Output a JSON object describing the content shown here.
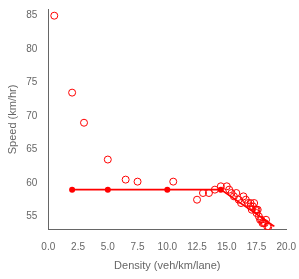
{
  "chart_data": {
    "type": "scatter",
    "xlabel": "Density (veh/km/lane)",
    "ylabel": "Speed (km/hr)",
    "xlim": [
      0,
      20
    ],
    "ylim": [
      53,
      86
    ],
    "xticks": [
      {
        "value": 0,
        "label": "0.0"
      },
      2.5,
      {
        "value": 5,
        "label": "5.0"
      },
      7.5,
      {
        "value": 10,
        "label": "10.0"
      },
      12.5,
      {
        "value": 15,
        "label": "15.0"
      },
      17.5,
      {
        "value": 20,
        "label": "20.0"
      }
    ],
    "yticks": [
      55,
      60,
      65,
      70,
      75,
      80,
      85
    ],
    "grid": false,
    "series": [
      {
        "type": "line",
        "color": "#ff0000",
        "line_style": "solid",
        "x": [
          2.0,
          5.0,
          10.0,
          14.5,
          19.0
        ],
        "values": [
          59.0,
          59.0,
          59.0,
          59.0,
          53.5
        ]
      },
      {
        "type": "scatter",
        "color": "#ff0000",
        "marker": "circle",
        "x": [
          2.0,
          5.0,
          10.0,
          14.5
        ],
        "values": [
          59.0,
          59.0,
          59.0,
          59.0
        ]
      },
      {
        "type": "scatter",
        "color": "#ff0000",
        "marker": "circle_open",
        "x": [
          0.5,
          2.0,
          3.0,
          5.0,
          6.5,
          7.5,
          10.5,
          12.5,
          13.0,
          13.5,
          14.0,
          14.5,
          15.0,
          15.2,
          15.4,
          15.6,
          15.8,
          16.0,
          16.2,
          16.4,
          16.6,
          16.8,
          17.0,
          17.0,
          17.1,
          17.2,
          17.3,
          17.4,
          17.5,
          17.5,
          17.6,
          17.7,
          17.8,
          17.9,
          18.0,
          18.1,
          18.2,
          18.3,
          18.4,
          18.5
        ],
        "values": [
          85.0,
          73.5,
          69.0,
          63.5,
          60.5,
          60.2,
          60.2,
          57.5,
          58.5,
          58.5,
          59.0,
          59.5,
          59.5,
          59.0,
          58.5,
          58.0,
          58.5,
          57.5,
          57.0,
          58.0,
          57.5,
          57.0,
          56.5,
          57.0,
          56.0,
          56.5,
          57.0,
          56.0,
          56.0,
          55.5,
          56.0,
          55.0,
          54.5,
          54.5,
          54.0,
          54.0,
          54.0,
          54.5,
          53.5,
          53.5
        ]
      }
    ]
  }
}
